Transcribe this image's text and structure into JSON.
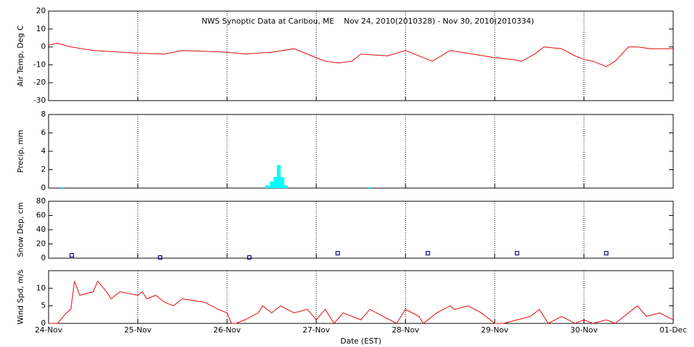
{
  "chart_data": [
    {
      "type": "line",
      "title": "NWS Synoptic Data at Caribou, ME    Nov 24, 2010(2010328) - Nov 30, 2010(2010334)",
      "ylabel": "Air Temp, Deg C",
      "xlim": [
        0,
        7
      ],
      "xticks": [
        0,
        1,
        2,
        3,
        4,
        5,
        6,
        7
      ],
      "grid": true,
      "ylim": [
        -30,
        20
      ],
      "yticks": [
        -30,
        -20,
        -10,
        0,
        10,
        20
      ],
      "x": [
        0,
        0.1,
        0.25,
        0.5,
        1.0,
        1.3,
        1.5,
        2.0,
        2.2,
        2.5,
        2.75,
        3.0,
        3.1,
        3.25,
        3.4,
        3.5,
        3.8,
        4.0,
        4.3,
        4.5,
        4.75,
        5.0,
        5.2,
        5.3,
        5.45,
        5.55,
        5.75,
        5.9,
        6.0,
        6.1,
        6.25,
        6.35,
        6.5,
        6.6,
        6.75,
        7.0
      ],
      "series": [
        {
          "name": "Air Temp",
          "color": "#e00000",
          "values": [
            1,
            2,
            0,
            -2,
            -3.5,
            -4,
            -2,
            -3,
            -4,
            -3,
            -1,
            -6,
            -8,
            -9,
            -8,
            -4,
            -5,
            -2,
            -8,
            -2,
            -4,
            -6,
            -7,
            -8,
            -4,
            0,
            -1,
            -5,
            -7,
            -8,
            -11,
            -8,
            0,
            0,
            -1,
            -1
          ]
        }
      ]
    },
    {
      "type": "bar",
      "ylabel": "Precip, mm",
      "xlim": [
        0,
        7
      ],
      "xticks": [
        0,
        1,
        2,
        3,
        4,
        5,
        6,
        7
      ],
      "grid": true,
      "ylim": [
        0,
        8
      ],
      "yticks": [
        0,
        2,
        4,
        6,
        8
      ],
      "x": [
        0.15,
        2.45,
        2.5,
        2.54,
        2.58,
        2.62,
        2.66,
        3.6
      ],
      "series": [
        {
          "name": "Precip",
          "color": "#00ffff",
          "values": [
            0.1,
            0.3,
            0.7,
            1.2,
            2.5,
            1.2,
            0.3,
            0.1
          ]
        }
      ]
    },
    {
      "type": "scatter",
      "ylabel": "Snow Dep, cm",
      "xlim": [
        0,
        7
      ],
      "xticks": [
        0,
        1,
        2,
        3,
        4,
        5,
        6,
        7
      ],
      "grid": true,
      "ylim": [
        0,
        80
      ],
      "yticks": [
        0,
        20,
        40,
        60,
        80
      ],
      "x": [
        0.26,
        1.25,
        2.25,
        3.24,
        4.25,
        5.25,
        6.25
      ],
      "series": [
        {
          "name": "Snow Depth",
          "color": "#000080",
          "values": [
            4,
            1,
            1,
            7,
            7,
            7,
            7
          ]
        }
      ]
    },
    {
      "type": "line",
      "ylabel": "Wind Spd, m/s",
      "xlabel": "Date (EST)",
      "xlim": [
        0,
        7
      ],
      "grid": true,
      "xticks": [
        {
          "value": 0,
          "label": "24-Nov"
        },
        {
          "value": 1,
          "label": "25-Nov"
        },
        {
          "value": 2,
          "label": "26-Nov"
        },
        {
          "value": 3,
          "label": "27-Nov"
        },
        {
          "value": 4,
          "label": "28-Nov"
        },
        {
          "value": 5,
          "label": "29-Nov"
        },
        {
          "value": 6,
          "label": "30-Nov"
        },
        {
          "value": 7,
          "label": "01-Dec"
        }
      ],
      "ylim": [
        0,
        15
      ],
      "yticks": [
        0,
        5,
        10
      ],
      "x": [
        0,
        0.1,
        0.2,
        0.25,
        0.29,
        0.35,
        0.5,
        0.55,
        0.65,
        0.7,
        0.8,
        1.0,
        1.05,
        1.1,
        1.2,
        1.3,
        1.4,
        1.5,
        1.75,
        1.9,
        2.0,
        2.05,
        2.1,
        2.2,
        2.35,
        2.4,
        2.5,
        2.6,
        2.75,
        2.9,
        3.0,
        3.1,
        3.2,
        3.3,
        3.5,
        3.6,
        3.75,
        3.9,
        4.0,
        4.15,
        4.2,
        4.35,
        4.5,
        4.55,
        4.7,
        4.85,
        5.0,
        5.1,
        5.25,
        5.4,
        5.5,
        5.6,
        5.75,
        5.9,
        6.0,
        6.1,
        6.25,
        6.35,
        6.5,
        6.6,
        6.7,
        6.85,
        7.0
      ],
      "series": [
        {
          "name": "Wind Speed",
          "color": "#e00000",
          "values": [
            0,
            0,
            3,
            4,
            12,
            8,
            9,
            12,
            9,
            7,
            9,
            8,
            9,
            7,
            8,
            6,
            5,
            7,
            6,
            4,
            3,
            0,
            0,
            1,
            3,
            5,
            3,
            5,
            3,
            4,
            1,
            4,
            0,
            3,
            1,
            4,
            2,
            0,
            4,
            2,
            0,
            3,
            5,
            4,
            5,
            3,
            0,
            0,
            1,
            2,
            4,
            0,
            2,
            0,
            1,
            0,
            1,
            0,
            3,
            5,
            2,
            3,
            1
          ]
        }
      ]
    }
  ]
}
